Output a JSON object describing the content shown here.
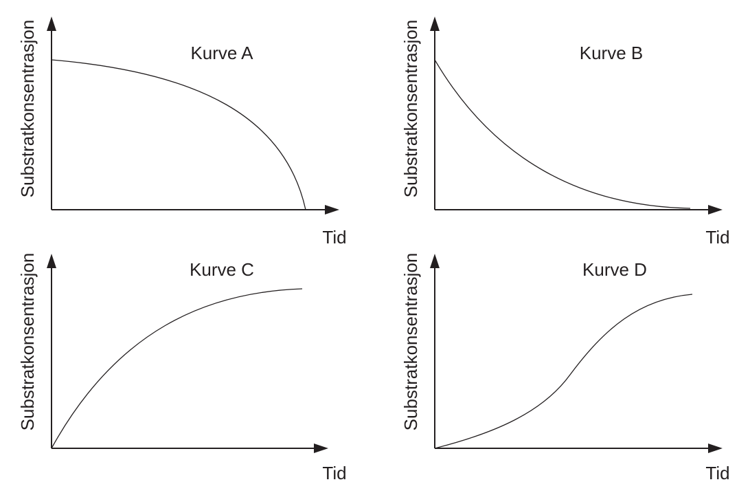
{
  "panels": [
    {
      "title": "Kurve A",
      "y_label": "Substratkonsentrasjon",
      "x_label": "Tid"
    },
    {
      "title": "Kurve B",
      "y_label": "Substratkonsentrasjon",
      "x_label": "Tid"
    },
    {
      "title": "Kurve C",
      "y_label": "Substratkonsentrasjon",
      "x_label": "Tid"
    },
    {
      "title": "Kurve D",
      "y_label": "Substratkonsentrasjon",
      "x_label": "Tid"
    }
  ]
}
